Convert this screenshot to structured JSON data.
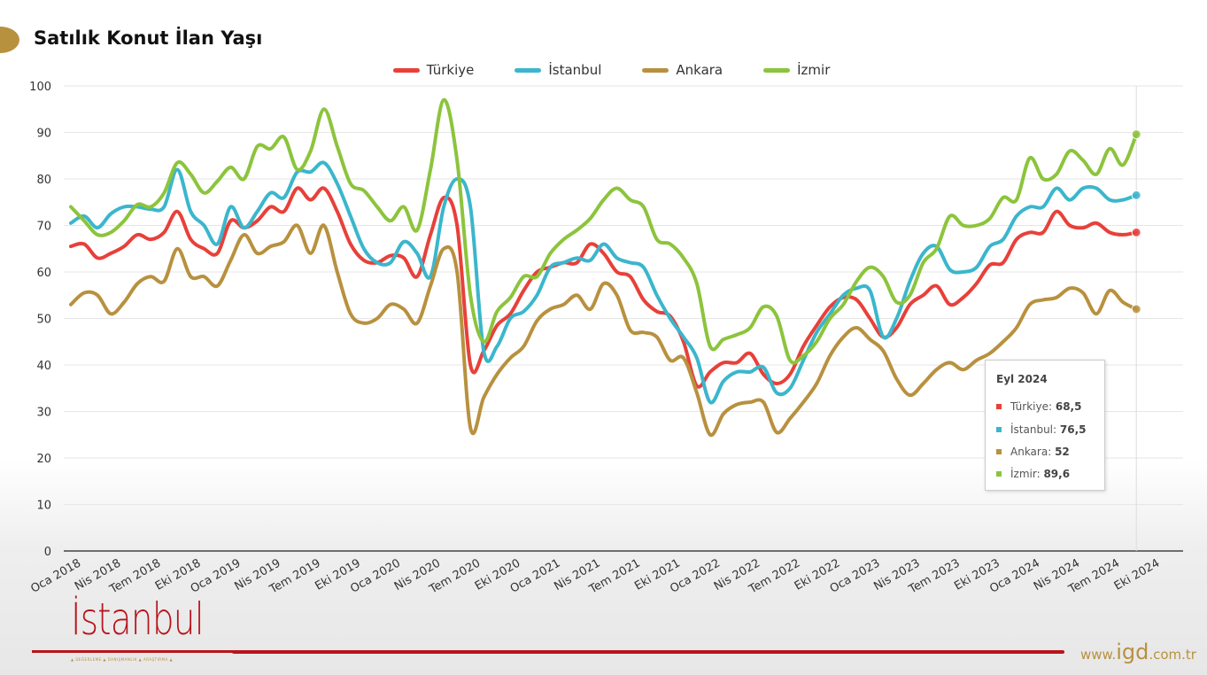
{
  "header": {
    "title": "Satılık Konut İlan Yaşı"
  },
  "footer": {
    "logo": "İstanbul",
    "logo_subtitle": "▲ DEĞERLEME ▲ DANIŞMANLIK ▲ ARAŞTIRMA ▲",
    "web_prefix": "www.",
    "web_main": "igd",
    "web_suffix": ".com.tr"
  },
  "tooltip": {
    "title": "Eyl 2024",
    "rows": [
      {
        "label": "Türkiye: ",
        "value": "68,5",
        "color": "#e8403a"
      },
      {
        "label": "İstanbul: ",
        "value": "76,5",
        "color": "#3bb6cc"
      },
      {
        "label": "Ankara: ",
        "value": "52",
        "color": "#b8913f"
      },
      {
        "label": "İzmir: ",
        "value": "89,6",
        "color": "#8cc43c"
      }
    ]
  },
  "chart_data": {
    "type": "line",
    "title": "Satılık Konut İlan Yaşı",
    "xlabel": "",
    "ylabel": "",
    "ylim": [
      0,
      100
    ],
    "yticks": [
      0,
      10,
      20,
      30,
      40,
      50,
      60,
      70,
      80,
      90,
      100
    ],
    "grid": true,
    "legend": "top-center",
    "x_start": "Oca 2018",
    "x_end": "Eyl 2024",
    "x_step": "month",
    "xtick_labels": [
      "Oca 2018",
      "Nis 2018",
      "Tem 2018",
      "Eki 2018",
      "Oca 2019",
      "Nis 2019",
      "Tem 2019",
      "Eki 2019",
      "Oca 2020",
      "Nis 2020",
      "Tem 2020",
      "Eki 2020",
      "Oca 2021",
      "Nis 2021",
      "Tem 2021",
      "Eki 2021",
      "Oca 2022",
      "Nis 2022",
      "Tem 2022",
      "Eki 2022",
      "Oca 2023",
      "Nis 2023",
      "Tem 2023",
      "Eki 2023",
      "Oca 2024",
      "Nis 2024",
      "Tem 2024",
      "Eki 2024"
    ],
    "series": [
      {
        "name": "Türkiye",
        "color": "#e8403a",
        "values": [
          65.5,
          66,
          63,
          64,
          65.5,
          68,
          67,
          68.5,
          73,
          67,
          65,
          64,
          71,
          69.5,
          71,
          74,
          73,
          78,
          75.5,
          78,
          73,
          66,
          62.5,
          62,
          63.5,
          63,
          59,
          68,
          76,
          70,
          40,
          43,
          48.5,
          51,
          56,
          60,
          61,
          62,
          62,
          66,
          64,
          60,
          59,
          54,
          51.5,
          50.5,
          45,
          35.5,
          38.5,
          40.5,
          40.5,
          42.5,
          38,
          36,
          38,
          44,
          48.5,
          52.5,
          54.5,
          54,
          50,
          46,
          48,
          53,
          55,
          57,
          53,
          54.5,
          57.5,
          61.5,
          62,
          67,
          68.5,
          68.5,
          73,
          70,
          69.5,
          70.5,
          68.5,
          68,
          68.5
        ]
      },
      {
        "name": "İstanbul",
        "color": "#3bb6cc",
        "values": [
          70.5,
          72,
          69.5,
          72.5,
          74,
          74,
          73.5,
          74,
          82,
          73,
          70,
          66,
          74,
          69.5,
          73,
          77,
          76,
          81.5,
          81.5,
          83.5,
          79,
          72,
          65,
          62,
          62,
          66.5,
          64,
          59,
          74,
          80,
          74,
          43,
          44,
          50,
          51.5,
          55,
          61,
          62,
          63,
          62.5,
          66,
          63,
          62,
          61,
          55,
          50,
          46,
          41.5,
          32,
          36.5,
          38.5,
          38.5,
          39.5,
          34,
          35,
          41,
          47,
          51,
          55,
          56.5,
          56,
          46,
          50,
          58,
          64,
          65.5,
          60.5,
          60,
          61,
          65.5,
          67,
          72,
          74,
          74,
          78,
          75.5,
          78,
          78,
          75.5,
          75.5,
          76.5
        ]
      },
      {
        "name": "Ankara",
        "color": "#b8913f",
        "values": [
          53,
          55.5,
          55,
          51,
          53.5,
          57.5,
          59,
          58,
          65,
          59,
          59,
          57,
          62.5,
          68,
          64,
          65.5,
          66.5,
          70,
          64,
          70,
          60,
          51,
          49,
          50,
          53,
          52,
          49,
          57,
          65,
          60,
          26.5,
          33,
          38,
          41.5,
          44,
          49.5,
          52,
          53,
          55,
          52,
          57.5,
          55,
          47.5,
          47,
          46,
          41,
          41.5,
          34,
          25,
          29.5,
          31.5,
          32,
          32,
          25.5,
          28.5,
          32,
          36,
          42,
          46,
          48,
          45.5,
          43,
          37,
          33.5,
          36,
          39,
          40.5,
          39,
          41,
          42.5,
          45,
          48,
          53,
          54,
          54.5,
          56.5,
          55.5,
          51,
          56,
          53.5,
          52
        ]
      },
      {
        "name": "İzmir",
        "color": "#8cc43c",
        "values": [
          74,
          71,
          68,
          68.5,
          71,
          74.5,
          74,
          77,
          83.5,
          81,
          77,
          79.5,
          82.5,
          80,
          87,
          86.5,
          89,
          82,
          86,
          95,
          87,
          79,
          77.5,
          74,
          71,
          74,
          69,
          82,
          97,
          84,
          55,
          45,
          51.5,
          54.5,
          59,
          59,
          64,
          67,
          69,
          71.5,
          75.5,
          78,
          75.5,
          74,
          67,
          66,
          63,
          57.5,
          44,
          45.5,
          46.5,
          48,
          52.5,
          50.5,
          41,
          42,
          45,
          50,
          53,
          58,
          61,
          59,
          53.5,
          55,
          62,
          65,
          72,
          70,
          70,
          71.5,
          76,
          75.5,
          84.5,
          80,
          81,
          86,
          84,
          81,
          86.5,
          83,
          89.6
        ]
      }
    ]
  }
}
